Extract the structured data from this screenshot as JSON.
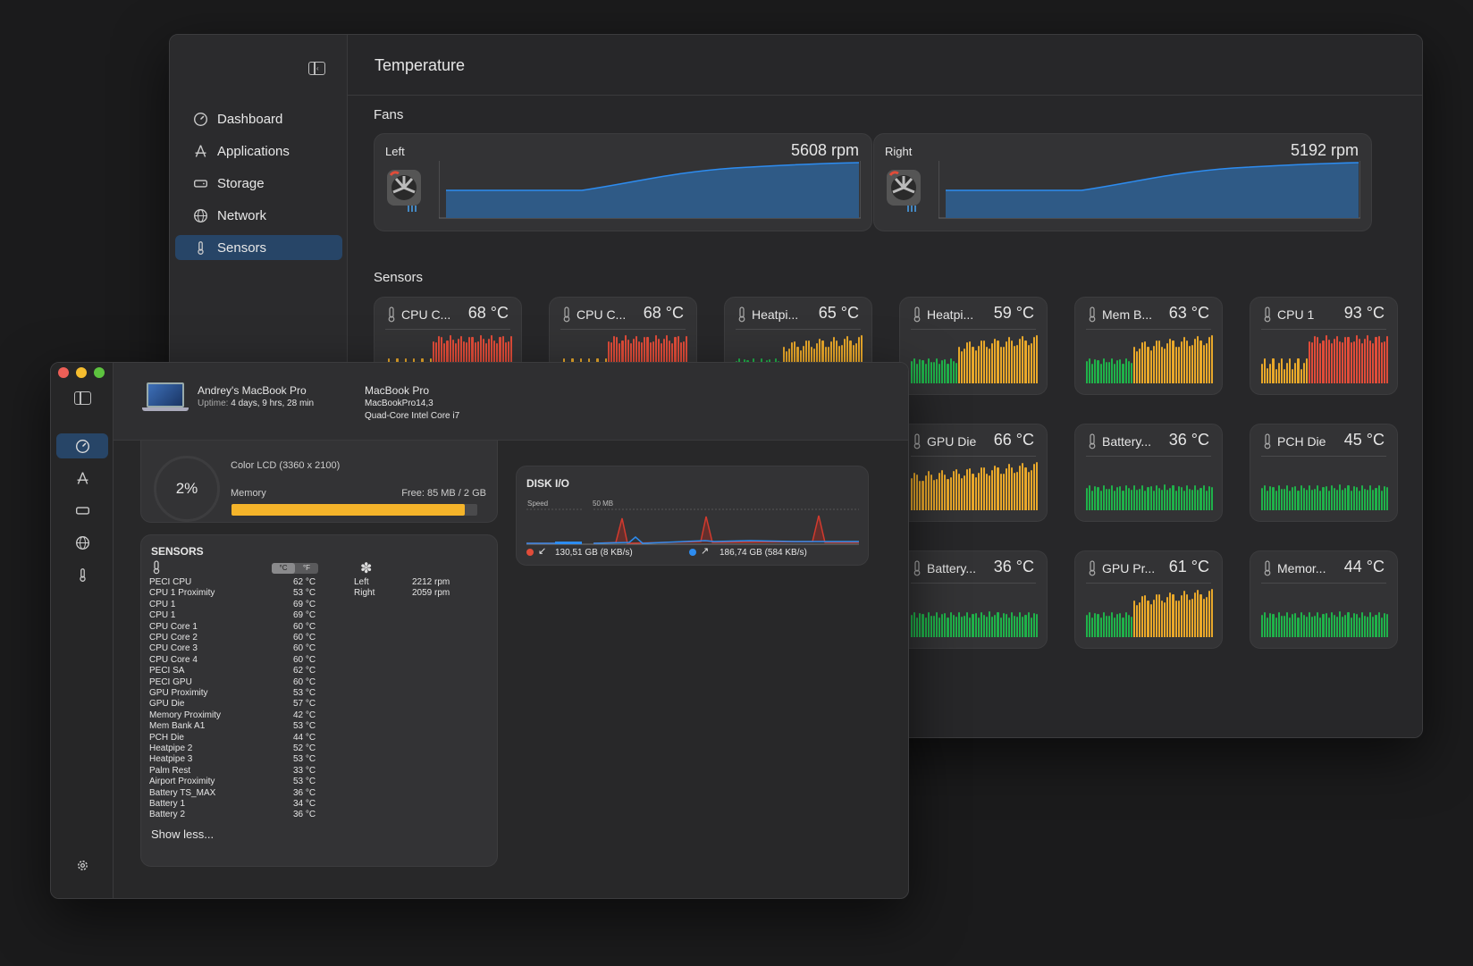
{
  "colors": {
    "accent": "#274567",
    "hot": "#e14c39",
    "warm": "#e9a82a",
    "cool": "#1fb24a",
    "fan_fill": "#2f5a86",
    "fan_line": "#2d8cf0"
  },
  "back": {
    "nav": [
      {
        "label": "Dashboard",
        "icon": "gauge-icon"
      },
      {
        "label": "Applications",
        "icon": "app-store-icon"
      },
      {
        "label": "Storage",
        "icon": "drive-icon"
      },
      {
        "label": "Network",
        "icon": "globe-icon"
      },
      {
        "label": "Sensors",
        "icon": "thermometer-icon",
        "active": true
      }
    ],
    "page_title": "Temperature",
    "fans_label": "Fans",
    "sensors_label": "Sensors",
    "fans": [
      {
        "name": "Left",
        "rpm": "5608 rpm"
      },
      {
        "name": "Right",
        "rpm": "5192 rpm"
      }
    ],
    "sensors": [
      {
        "name": "CPU C...",
        "value": "68 °C"
      },
      {
        "name": "CPU C...",
        "value": "68 °C"
      },
      {
        "name": "Heatpi...",
        "value": "65 °C"
      },
      {
        "name": "Heatpi...",
        "value": "59 °C"
      },
      {
        "name": "Mem B...",
        "value": "63 °C"
      },
      {
        "name": "CPU 1",
        "value": "93 °C"
      },
      {
        "name": "GPU Die",
        "value": "66 °C"
      },
      {
        "name": "Battery...",
        "value": "36 °C"
      },
      {
        "name": "PCH Die",
        "value": "45 °C"
      },
      {
        "name": "Battery...",
        "value": "36 °C"
      },
      {
        "name": "GPU Pr...",
        "value": "61 °C"
      },
      {
        "name": "Memor...",
        "value": "44 °C"
      }
    ]
  },
  "front": {
    "device_name": "Andrey's MacBook Pro",
    "uptime_label": "Uptime:",
    "uptime_value": "4 days, 9 hrs, 28 min",
    "model": "MacBook Pro",
    "model_id": "MacBookPro14,3",
    "cpu": "Quad-Core Intel Core i7",
    "gpu_percent": "2%",
    "display": "Color LCD (3360 x 2100)",
    "memory_label": "Memory",
    "memory_free": "Free: 85 MB / 2 GB",
    "memory_used_fraction": 0.95,
    "disk_title": "DISK I/O",
    "disk_speed_label": "Speed",
    "disk_scale": "50 MB",
    "disk_read": "130,51 GB (8 KB/s)",
    "disk_write": "186,74 GB (584 KB/s)",
    "sensors_title": "SENSORS",
    "unit_c": "°C",
    "unit_f": "°F",
    "sensor_rows": [
      [
        "PECI CPU",
        "62 °C"
      ],
      [
        "CPU 1 Proximity",
        "53 °C"
      ],
      [
        "CPU 1",
        "69 °C"
      ],
      [
        "CPU 1",
        "69 °C"
      ],
      [
        "CPU Core 1",
        "60 °C"
      ],
      [
        "CPU Core 2",
        "60 °C"
      ],
      [
        "CPU Core 3",
        "60 °C"
      ],
      [
        "CPU Core 4",
        "60 °C"
      ],
      [
        "PECI SA",
        "62 °C"
      ],
      [
        "PECI GPU",
        "60 °C"
      ],
      [
        "GPU Proximity",
        "53 °C"
      ],
      [
        "GPU Die",
        "57 °C"
      ],
      [
        "Memory Proximity",
        "42 °C"
      ],
      [
        "Mem Bank A1",
        "53 °C"
      ],
      [
        "PCH Die",
        "44 °C"
      ],
      [
        "Heatpipe 2",
        "52 °C"
      ],
      [
        "Heatpipe 3",
        "53 °C"
      ],
      [
        "Palm Rest",
        "33 °C"
      ],
      [
        "Airport Proximity",
        "53 °C"
      ],
      [
        "Battery TS_MAX",
        "36 °C"
      ],
      [
        "Battery 1",
        "34 °C"
      ],
      [
        "Battery 2",
        "36 °C"
      ]
    ],
    "fans": [
      [
        "Left",
        "2212 rpm"
      ],
      [
        "Right",
        "2059 rpm"
      ]
    ],
    "show_less": "Show less..."
  }
}
